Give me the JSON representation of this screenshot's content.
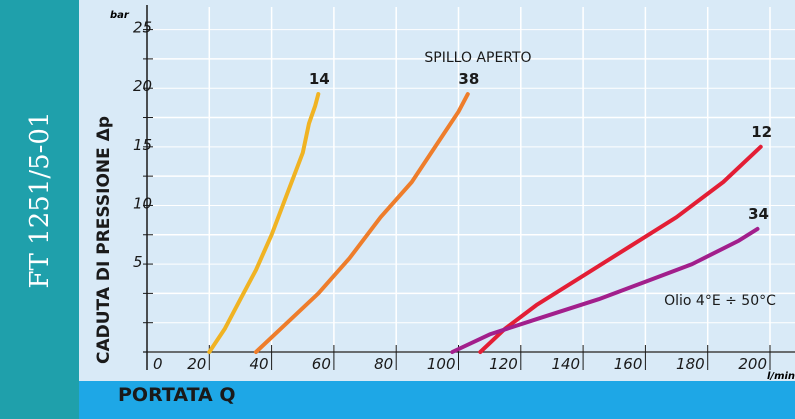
{
  "document": {
    "code": "FT 1251/5-01"
  },
  "chart_data": {
    "type": "line",
    "title": "SPILLO APERTO",
    "xlabel": "PORTATA Q",
    "ylabel": "CADUTA DI PRESSIONE Δp",
    "xunit": "l/min",
    "yunit": "bar",
    "xlim": [
      0,
      200
    ],
    "ylim": [
      0,
      29
    ],
    "xticks": [
      "0",
      "20",
      "40",
      "60",
      "80",
      "100",
      "120",
      "140",
      "160",
      "180",
      "200"
    ],
    "yticks": [
      "5",
      "10",
      "15",
      "20",
      "25"
    ],
    "note": "Olio 4°E ÷ 50°C",
    "grid": true,
    "series": [
      {
        "name": "14",
        "color": "#f0b323",
        "x": [
          20,
          25,
          30,
          35,
          40,
          45,
          50,
          52,
          54,
          55
        ],
        "y": [
          0,
          2,
          4.5,
          7,
          10,
          13.5,
          17,
          19.5,
          21,
          22
        ]
      },
      {
        "name": "38",
        "color": "#ee7d2b",
        "x": [
          35,
          45,
          55,
          65,
          75,
          85,
          95,
          100,
          103
        ],
        "y": [
          0,
          2.5,
          5,
          8,
          11.5,
          14.5,
          18.5,
          20.5,
          22
        ]
      },
      {
        "name": "12",
        "color": "#e31e35",
        "x": [
          107,
          115,
          125,
          140,
          155,
          170,
          185,
          197
        ],
        "y": [
          0,
          2,
          4,
          6.5,
          9,
          11.5,
          14.5,
          17.5
        ]
      },
      {
        "name": "34",
        "color": "#a21f8c",
        "x": [
          98,
          110,
          125,
          145,
          160,
          175,
          190,
          196
        ],
        "y": [
          0,
          1.5,
          2.8,
          4.5,
          6,
          7.5,
          9.5,
          10.5
        ]
      }
    ]
  }
}
